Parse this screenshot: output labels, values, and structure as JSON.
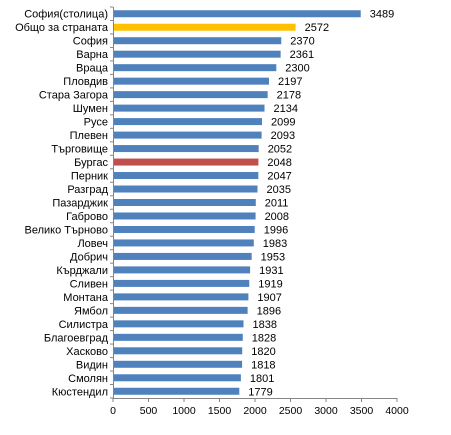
{
  "chart_data": {
    "type": "bar",
    "orientation": "horizontal",
    "title": "",
    "xlabel": "",
    "ylabel": "",
    "xlim": [
      0,
      4000
    ],
    "xticks": [
      "0",
      "500",
      "1000",
      "1500",
      "2000",
      "2500",
      "3000",
      "3500",
      "4000"
    ],
    "grid": false,
    "legend": "none",
    "categories": [
      "София(столица)",
      "Общо за страната",
      "София",
      "Варна",
      "Враца",
      "Пловдив",
      "Стара Загора",
      "Шумен",
      "Русе",
      "Плевен",
      "Търговище",
      "Бургас",
      "Перник",
      "Разград",
      "Пазарджик",
      "Габрово",
      "Велико Търново",
      "Ловеч",
      "Добрич",
      "Кърджали",
      "Сливен",
      "Монтана",
      "Ямбол",
      "Силистра",
      "Благоевград",
      "Хасково",
      "Видин",
      "Смолян",
      "Кюстендил"
    ],
    "values": [
      3489,
      2572,
      2370,
      2361,
      2300,
      2197,
      2178,
      2134,
      2099,
      2093,
      2052,
      2048,
      2047,
      2035,
      2011,
      2008,
      1996,
      1983,
      1953,
      1931,
      1919,
      1907,
      1896,
      1838,
      1828,
      1820,
      1818,
      1801,
      1779
    ],
    "colors": {
      "default": "#4f81bd",
      "highlight_total": "#ffc000",
      "highlight_burgas": "#c0504d"
    },
    "highlights": {
      "Общо за страната": "highlight_total",
      "Бургас": "highlight_burgas"
    }
  }
}
